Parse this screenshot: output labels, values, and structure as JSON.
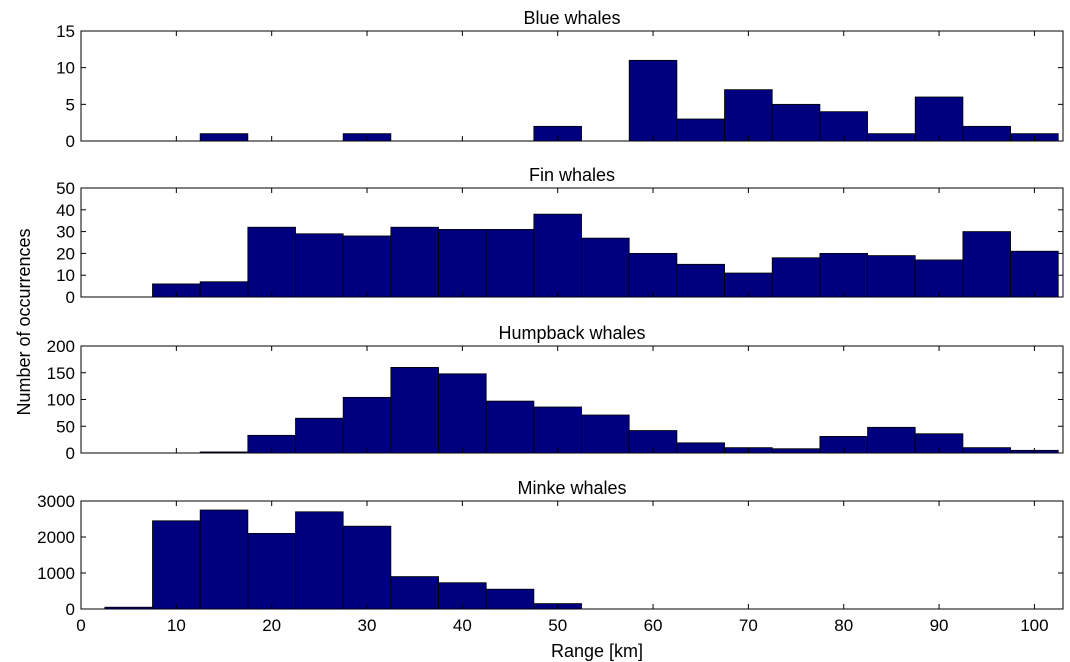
{
  "colors": {
    "bar_fill": "#00007f",
    "bar_edge": "#000000",
    "axes": "#000000",
    "background": "#ffffff"
  },
  "ylabel": "Number of occurrences",
  "xlabel": "Range [km]",
  "x_ticks": [
    "0",
    "10",
    "20",
    "30",
    "40",
    "50",
    "60",
    "70",
    "80",
    "90",
    "100"
  ],
  "chart_data": [
    {
      "type": "bar",
      "title": "Blue whales",
      "xlim": [
        0,
        103
      ],
      "ylim": [
        0,
        15
      ],
      "y_ticks": [
        "0",
        "5",
        "10",
        "15"
      ],
      "bin_width": 5,
      "x": [
        5,
        10,
        15,
        20,
        25,
        30,
        35,
        40,
        45,
        50,
        55,
        60,
        65,
        70,
        75,
        80,
        85,
        90,
        95,
        100
      ],
      "values": [
        0,
        0,
        1,
        0,
        0,
        1,
        0,
        0,
        0,
        2,
        0,
        11,
        3,
        7,
        5,
        4,
        1,
        6,
        2,
        1
      ]
    },
    {
      "type": "bar",
      "title": "Fin whales",
      "xlim": [
        0,
        103
      ],
      "ylim": [
        0,
        50
      ],
      "y_ticks": [
        "0",
        "10",
        "20",
        "30",
        "40",
        "50"
      ],
      "bin_width": 5,
      "x": [
        5,
        10,
        15,
        20,
        25,
        30,
        35,
        40,
        45,
        50,
        55,
        60,
        65,
        70,
        75,
        80,
        85,
        90,
        95,
        100
      ],
      "values": [
        0,
        6,
        7,
        32,
        29,
        28,
        32,
        31,
        31,
        38,
        27,
        20,
        15,
        11,
        18,
        20,
        19,
        17,
        30,
        21
      ]
    },
    {
      "type": "bar",
      "title": "Humpback whales",
      "xlim": [
        0,
        103
      ],
      "ylim": [
        0,
        200
      ],
      "y_ticks": [
        "0",
        "50",
        "100",
        "150",
        "200"
      ],
      "bin_width": 5,
      "x": [
        5,
        10,
        15,
        20,
        25,
        30,
        35,
        40,
        45,
        50,
        55,
        60,
        65,
        70,
        75,
        80,
        85,
        90,
        95,
        100
      ],
      "values": [
        0,
        0,
        2,
        33,
        65,
        104,
        160,
        148,
        97,
        86,
        71,
        42,
        19,
        10,
        8,
        31,
        48,
        36,
        10,
        5
      ]
    },
    {
      "type": "bar",
      "title": "Minke whales",
      "xlim": [
        0,
        103
      ],
      "ylim": [
        0,
        3000
      ],
      "y_ticks": [
        "0",
        "1000",
        "2000",
        "3000"
      ],
      "bin_width": 5,
      "x": [
        5,
        10,
        15,
        20,
        25,
        30,
        35,
        40,
        45,
        50
      ],
      "values": [
        50,
        2450,
        2750,
        2100,
        2700,
        2300,
        900,
        730,
        550,
        150
      ]
    }
  ]
}
